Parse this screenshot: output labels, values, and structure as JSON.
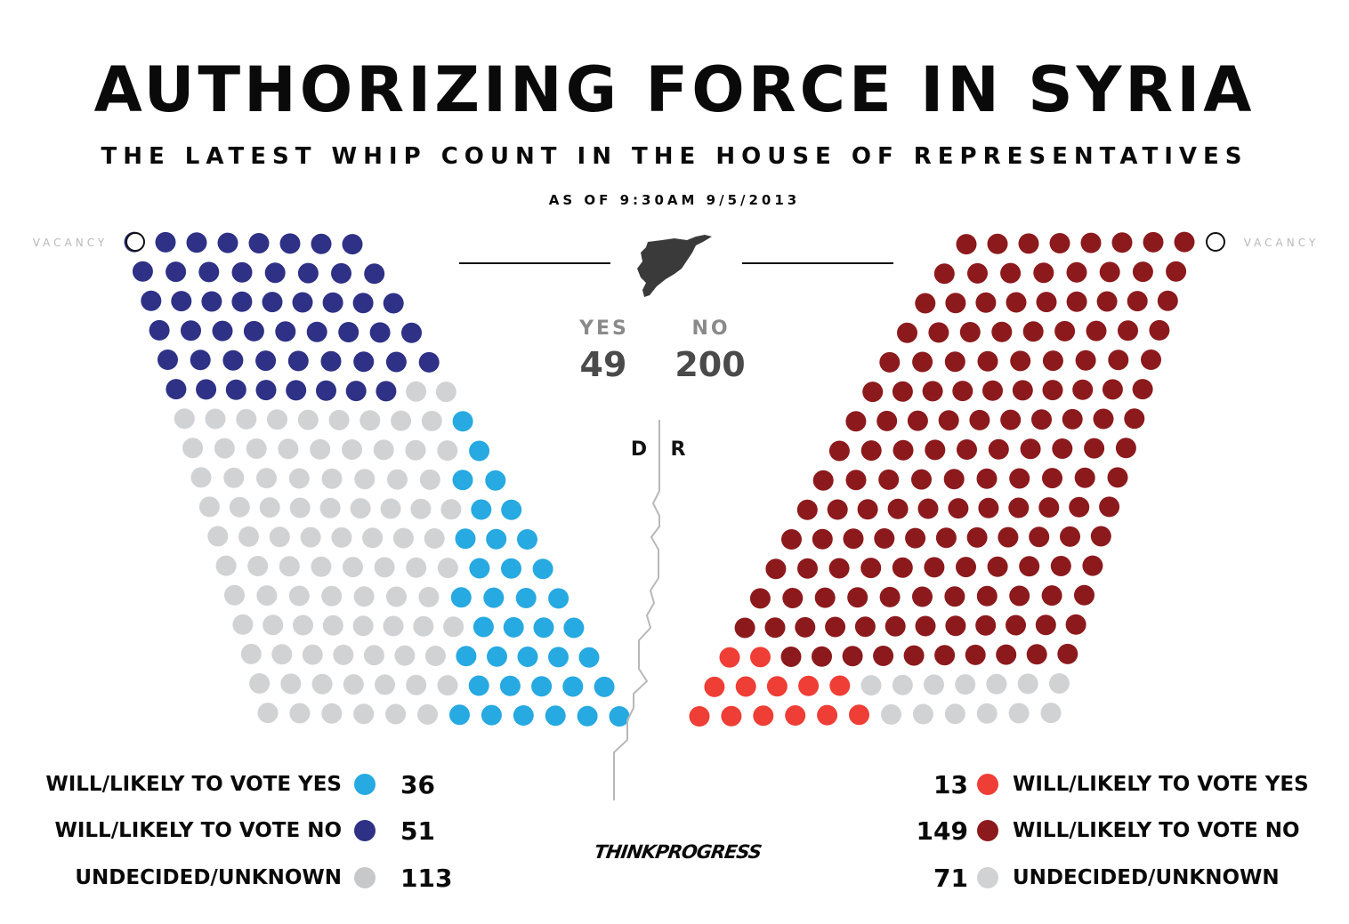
{
  "header": {
    "title": "AUTHORIZING FORCE IN SYRIA",
    "subtitle": "THE LATEST WHIP COUNT IN THE HOUSE OF REPRESENTATIVES",
    "as_of": "AS OF 9:30AM 9/5/2013"
  },
  "totals": {
    "yes_label": "YES",
    "yes_value": "49",
    "no_label": "NO",
    "no_value": "200"
  },
  "vacancy_label": "VACANCY",
  "party_labels": {
    "dem": "D",
    "rep": "R"
  },
  "colors": {
    "dem_yes": "#27a9e1",
    "dem_no": "#2e3185",
    "rep_yes": "#ee3e36",
    "rep_no": "#8c1a1d",
    "undecided": "#d1d2d4",
    "map": "#3a3a3a"
  },
  "legend": {
    "dem": [
      {
        "label": "WILL/LIKELY TO VOTE YES",
        "count": "36",
        "color": "#27a9e1"
      },
      {
        "label": "WILL/LIKELY TO VOTE NO",
        "count": "51",
        "color": "#2e3185"
      },
      {
        "label": "UNDECIDED/UNKNOWN",
        "count": "113",
        "color": "#c7c8ca"
      }
    ],
    "rep": [
      {
        "label": "WILL/LIKELY TO VOTE YES",
        "count": "13",
        "color": "#ee3e36"
      },
      {
        "label": "WILL/LIKELY TO VOTE NO",
        "count": "149",
        "color": "#8c1a1d"
      },
      {
        "label": "UNDECIDED/UNKNOWN",
        "count": "71",
        "color": "#d1d2d4"
      }
    ]
  },
  "logo": "THINKPROGRESS",
  "chart_data": {
    "type": "parliament",
    "series": [
      {
        "party": "D",
        "name": "WILL/LIKELY TO VOTE YES",
        "value": 36
      },
      {
        "party": "D",
        "name": "WILL/LIKELY TO VOTE NO",
        "value": 51
      },
      {
        "party": "D",
        "name": "UNDECIDED/UNKNOWN",
        "value": 113
      },
      {
        "party": "D",
        "name": "VACANCY",
        "value": 1
      },
      {
        "party": "R",
        "name": "WILL/LIKELY TO VOTE YES",
        "value": 13
      },
      {
        "party": "R",
        "name": "WILL/LIKELY TO VOTE NO",
        "value": 149
      },
      {
        "party": "R",
        "name": "UNDECIDED/UNKNOWN",
        "value": 71
      },
      {
        "party": "R",
        "name": "VACANCY",
        "value": 1
      }
    ],
    "totals": {
      "YES": 49,
      "NO": 200
    }
  }
}
